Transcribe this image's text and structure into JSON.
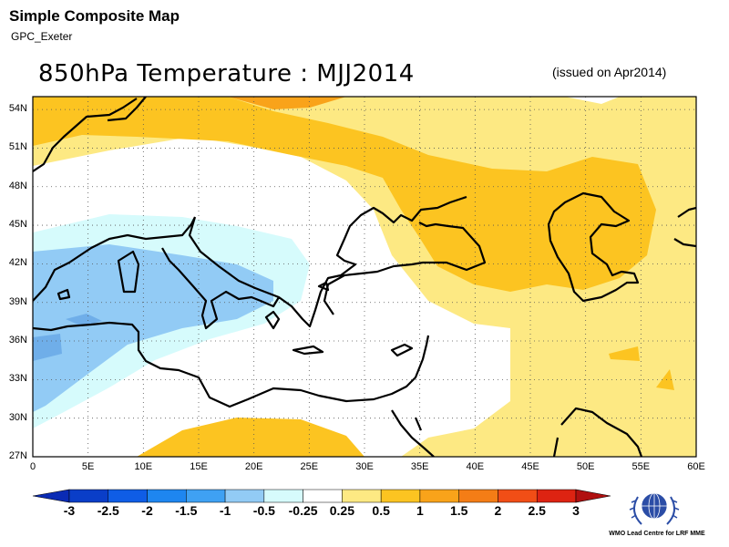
{
  "header": {
    "title": "Simple Composite Map",
    "subtitle": "GPC_Exeter"
  },
  "map": {
    "title": "850hPa Temperature : MJJ2014",
    "issued": "(issued on Apr2014)",
    "lon_range": [
      0,
      60
    ],
    "lat_range": [
      27,
      55
    ],
    "lat_ticks": [
      "54N",
      "51N",
      "48N",
      "45N",
      "42N",
      "39N",
      "36N",
      "33N",
      "30N",
      "27N"
    ],
    "lon_ticks": [
      "0",
      "5E",
      "10E",
      "15E",
      "20E",
      "25E",
      "30E",
      "35E",
      "40E",
      "45E",
      "50E",
      "55E",
      "60E"
    ],
    "grid": "dotted"
  },
  "colorbar": {
    "labels": [
      "-3",
      "-2.5",
      "-2",
      "-1.5",
      "-1",
      "-0.5",
      "-0.25",
      "0.25",
      "0.5",
      "1",
      "1.5",
      "2",
      "2.5",
      "3"
    ],
    "colors": [
      "#0a3ec8",
      "#0f5de6",
      "#1e86f0",
      "#3fa1f3",
      "#92cbf5",
      "#d6fbfc",
      "#ffffff",
      "#fde983",
      "#fcc421",
      "#f9a31a",
      "#f47d16",
      "#f14e16",
      "#dd2312"
    ],
    "under_color": "#0a2bb4",
    "over_color": "#b01010"
  },
  "logo": {
    "name": "wmo-logo-icon",
    "text": "WMO Lead Centre for LRF MME"
  }
}
